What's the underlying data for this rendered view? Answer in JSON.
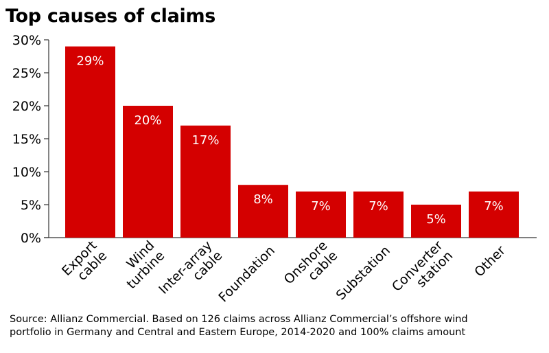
{
  "chart_data": {
    "type": "bar",
    "title": "Top causes of claims",
    "categories": [
      [
        "Export",
        "cable"
      ],
      [
        "Wind",
        "turbine"
      ],
      [
        "Inter-array",
        "cable"
      ],
      [
        "Foundation"
      ],
      [
        "Onshore",
        "cable"
      ],
      [
        "Substation"
      ],
      [
        "Converter",
        "station"
      ],
      [
        "Other"
      ]
    ],
    "values": [
      29,
      20,
      17,
      8,
      7,
      7,
      5,
      7
    ],
    "data_labels": [
      "29%",
      "20%",
      "17%",
      "8%",
      "7%",
      "7%",
      "5%",
      "7%"
    ],
    "yticks": [
      0,
      5,
      10,
      15,
      20,
      25,
      30
    ],
    "ytick_labels": [
      "0%",
      "5%",
      "10%",
      "15%",
      "20%",
      "25%",
      "30%"
    ],
    "ylim": [
      0,
      30
    ],
    "xlabel": "",
    "ylabel": "",
    "grid": false,
    "bar_color": "#d40000",
    "label_color": "#ffffff"
  },
  "source": "Source: Allianz Commercial. Based on 126 claims across Allianz Commercial’s offshore wind\nportfolio in Germany and Central and Eastern Europe, 2014-2020 and 100% claims amount"
}
